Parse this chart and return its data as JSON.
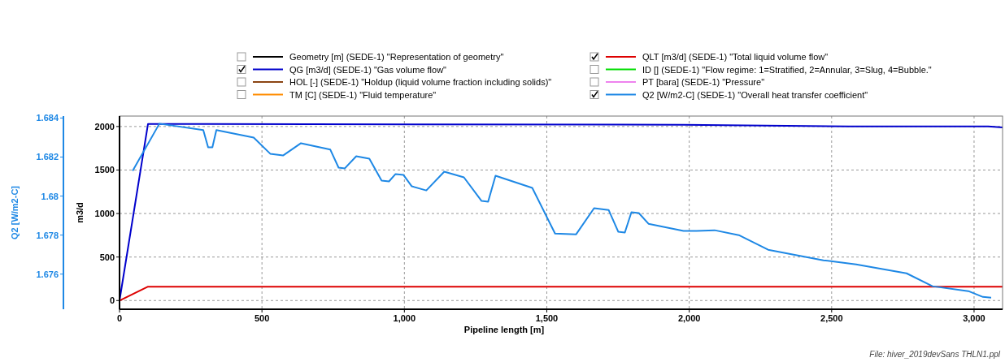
{
  "chart_data": {
    "type": "line",
    "xlabel": "Pipeline length [m]",
    "ylabel": "m3/d",
    "y2label": "Q2 [W/m2-C]",
    "xlim": [
      0,
      3100
    ],
    "xticks": [
      0,
      500,
      {
        "value": 1000,
        "label": "1,000"
      },
      {
        "value": 1500,
        "label": "1,500"
      },
      {
        "value": 2000,
        "label": "2,000"
      },
      {
        "value": 2500,
        "label": "2,500"
      },
      {
        "value": 3000,
        "label": "3,000"
      }
    ],
    "ylim": [
      -100,
      2120
    ],
    "yticks": [
      0,
      500,
      1000,
      1500,
      2000
    ],
    "y2lim": [
      1.6742,
      1.6841
    ],
    "y2ticks": [
      1.676,
      1.678,
      1.68,
      1.682,
      1.684
    ],
    "grid": true,
    "legend": "top",
    "line_style": "solid",
    "marker": "none",
    "series": [
      {
        "name": "Geometry [m] (SEDE-1) \"Representation of geometry\"",
        "color": "#000000"
      },
      {
        "name": "QG [m3/d] (SEDE-1) \"Gas volume flow\"",
        "color": "#0000cc",
        "x": [
          0,
          100,
          250,
          1980,
          2560,
          3050,
          3100
        ],
        "values": [
          0,
          2030,
          2030,
          2020,
          2000,
          2000,
          1990
        ]
      },
      {
        "name": "HOL [-] (SEDE-1) \"Holdup (liquid volume fraction including solids)\"",
        "color": "#8b4513"
      },
      {
        "name": "TM [C] (SEDE-1) \"Fluid temperature\"",
        "color": "#ff8c00"
      },
      {
        "name": "QLT [m3/d] (SEDE-1) \"Total liquid volume flow\"",
        "color": "#dd0000",
        "x": [
          0,
          100,
          3100
        ],
        "values": [
          0,
          160,
          160
        ]
      },
      {
        "name": "ID [] (SEDE-1) \"Flow regime: 1=Stratified, 2=Annular, 3=Slug, 4=Bubble.\"",
        "color": "#00dd00"
      },
      {
        "name": "PT [bara] (SEDE-1) \"Pressure\"",
        "color": "#ee82ee"
      },
      {
        "name": "Q2 [W/m2-C] (SEDE-1) \"Overall heat transfer coefficient\"",
        "color": "#1e88e5",
        "axis": "y2",
        "x": [
          46,
          140,
          294,
          311,
          326,
          340,
          471,
          529,
          574,
          637,
          740,
          769,
          791,
          831,
          877,
          920,
          946,
          969,
          997,
          1026,
          1077,
          1140,
          1209,
          1271,
          1294,
          1320,
          1449,
          1529,
          1603,
          1666,
          1717,
          1751,
          1774,
          1797,
          1823,
          1857,
          1980,
          2026,
          2089,
          2174,
          2277,
          2471,
          2586,
          2763,
          2854,
          2980,
          3031,
          3060
        ],
        "values": [
          1.68129,
          1.68371,
          1.68338,
          1.6825,
          1.6825,
          1.68338,
          1.683,
          1.68217,
          1.68208,
          1.68271,
          1.68238,
          1.68146,
          1.68142,
          1.68204,
          1.68192,
          1.68079,
          1.68075,
          1.68113,
          1.68108,
          1.6805,
          1.68029,
          1.68125,
          1.68096,
          1.67975,
          1.67971,
          1.68104,
          1.68042,
          1.67808,
          1.67804,
          1.67938,
          1.67929,
          1.67817,
          1.67813,
          1.67917,
          1.67913,
          1.67858,
          1.67821,
          1.67821,
          1.67825,
          1.678,
          1.67725,
          1.67671,
          1.6765,
          1.67604,
          1.67538,
          1.67513,
          1.67483,
          1.67479
        ]
      }
    ],
    "annotations": [
      "File: hiver_2019devSans THLN1.ppl"
    ]
  }
}
